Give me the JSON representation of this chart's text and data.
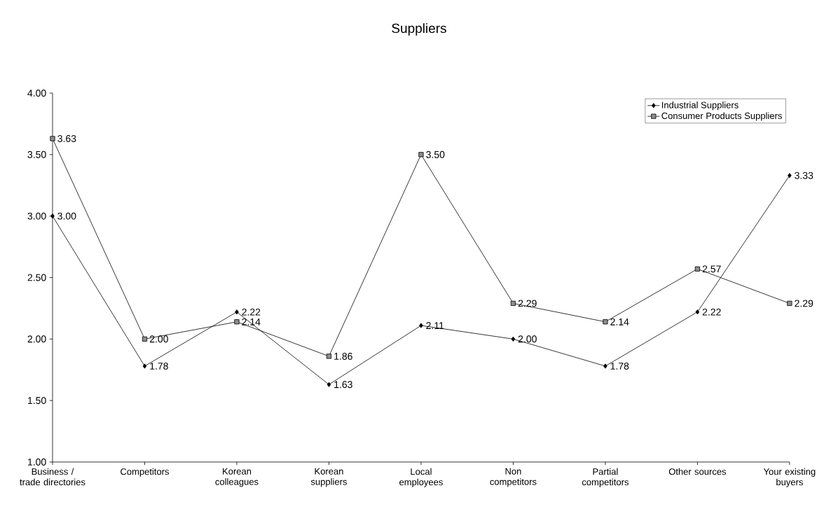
{
  "chart_data": {
    "type": "line",
    "title": "Suppliers",
    "categories": [
      "Business / trade directories",
      "Competitors",
      "Korean colleagues",
      "Korean suppliers",
      "Local employees",
      "Non competitors",
      "Partial competitors",
      "Other sources",
      "Your existing buyers"
    ],
    "series": [
      {
        "name": "Industrial Suppliers",
        "color": "#000000",
        "marker": "diamond",
        "values": [
          3.0,
          1.78,
          2.22,
          1.63,
          2.11,
          2.0,
          1.78,
          2.22,
          3.33
        ],
        "value_labels": [
          "3.00",
          "1.78",
          "2.22",
          "1.63",
          "2.11",
          "2.00",
          "1.78",
          "2.22",
          "3.33"
        ]
      },
      {
        "name": "Consumer Products Suppliers",
        "color": "#000000",
        "marker": "square",
        "values": [
          3.63,
          2.0,
          2.14,
          1.86,
          3.5,
          2.29,
          2.14,
          2.57,
          2.29
        ],
        "value_labels": [
          "3.63",
          "2.00",
          "2.14",
          "1.86",
          "3.50",
          "2.29",
          "2.14",
          "2.57",
          "2.29"
        ]
      }
    ],
    "ylim": [
      1,
      4
    ],
    "yticks": [
      {
        "value": 1,
        "label": "1.00"
      },
      {
        "value": 1.5,
        "label": "1.50"
      },
      {
        "value": 2,
        "label": "2.00"
      },
      {
        "value": 2.5,
        "label": "2.50"
      },
      {
        "value": 3,
        "label": "3.00"
      },
      {
        "value": 3.5,
        "label": "3.50"
      },
      {
        "value": 4,
        "label": "4.00"
      }
    ],
    "legend": "top right",
    "grid": false,
    "line_style": "solid"
  }
}
